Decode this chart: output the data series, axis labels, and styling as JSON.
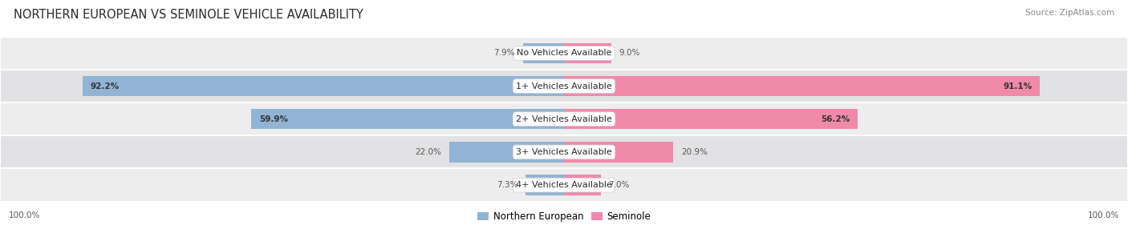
{
  "title": "NORTHERN EUROPEAN VS SEMINOLE VEHICLE AVAILABILITY",
  "source": "Source: ZipAtlas.com",
  "categories": [
    "No Vehicles Available",
    "1+ Vehicles Available",
    "2+ Vehicles Available",
    "3+ Vehicles Available",
    "4+ Vehicles Available"
  ],
  "northern_european": [
    7.9,
    92.2,
    59.9,
    22.0,
    7.3
  ],
  "seminole": [
    9.0,
    91.1,
    56.2,
    20.9,
    7.0
  ],
  "blue_color": "#92b4d4",
  "pink_color": "#f08aaa",
  "blue_light": "#b8d0e8",
  "pink_light": "#f4b0c8",
  "row_colors": [
    "#ededee",
    "#e2e2e4"
  ],
  "title_fontsize": 10.5,
  "source_fontsize": 7.5,
  "label_fontsize": 8,
  "value_fontsize": 7.5,
  "max_val": 100.0,
  "bar_height": 0.62,
  "figsize": [
    14.06,
    2.86
  ],
  "dpi": 100,
  "bg_color": "#ffffff",
  "bar_area_bg": "#f0f0f2"
}
